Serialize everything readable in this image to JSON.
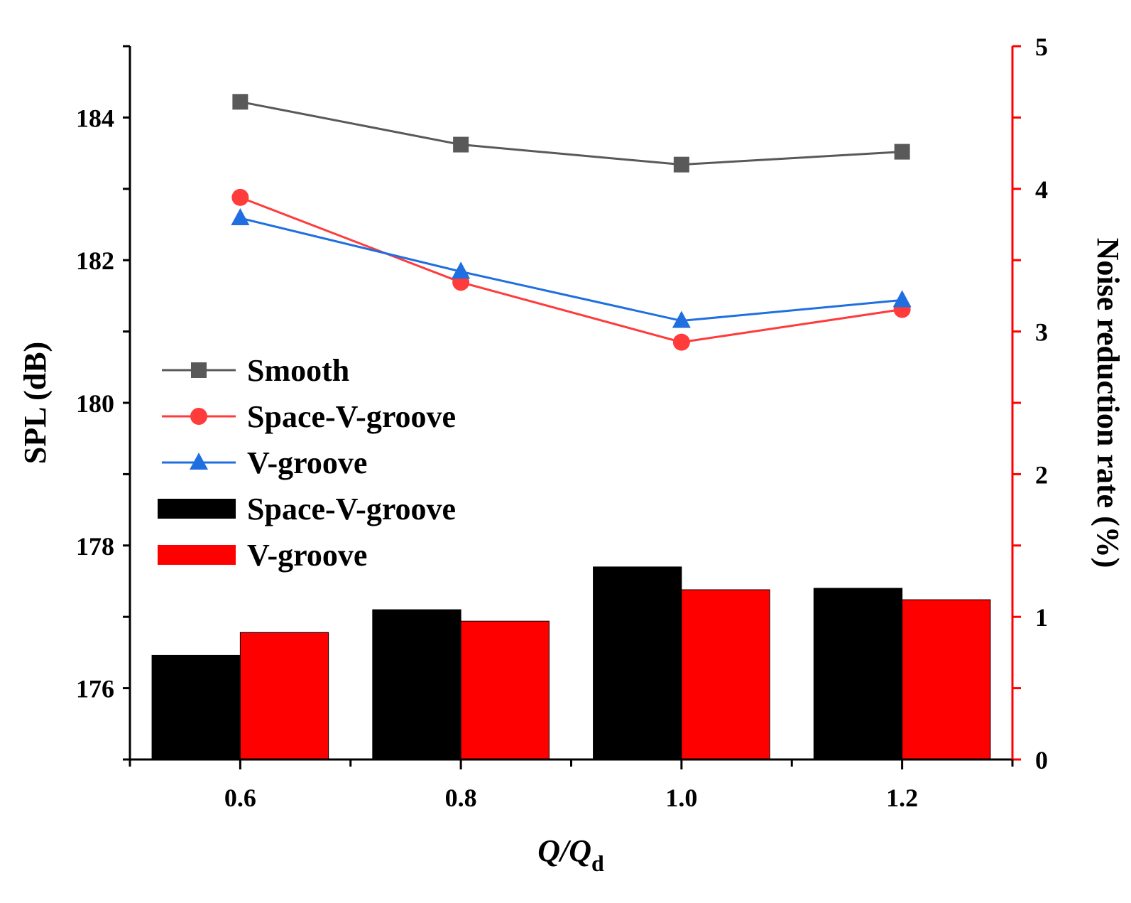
{
  "chart_data": {
    "type": "bar",
    "x_axis": {
      "label_main": "Q/Q",
      "label_sub": "d",
      "categories": [
        "0.6",
        "0.8",
        "1.0",
        "1.2"
      ]
    },
    "left_axis": {
      "label": "SPL (dB)",
      "range": [
        175,
        185
      ],
      "ticks": [
        "176",
        "178",
        "180",
        "182",
        "184"
      ]
    },
    "right_axis": {
      "label": "Noise reduction rate (%)",
      "range": [
        0,
        5
      ],
      "ticks": [
        "0",
        "1",
        "2",
        "3",
        "4",
        "5"
      ],
      "color": "#ff0000"
    },
    "line_series": [
      {
        "name": "Smooth",
        "marker": "square",
        "color": "#595959",
        "values": [
          184.22,
          183.62,
          183.34,
          183.52
        ]
      },
      {
        "name": "Space-V-groove",
        "marker": "circle",
        "color": "#ff3b3b",
        "values": [
          182.88,
          181.69,
          180.85,
          181.31
        ]
      },
      {
        "name": "V-groove",
        "marker": "triangle",
        "color": "#1f6fe0",
        "values": [
          182.59,
          181.84,
          181.15,
          181.44
        ]
      }
    ],
    "bar_series": [
      {
        "name": "Space-V-groove",
        "color": "#000000",
        "values": [
          0.73,
          1.05,
          1.35,
          1.2
        ]
      },
      {
        "name": "V-groove",
        "color": "#ff0000",
        "values": [
          0.89,
          0.97,
          1.19,
          1.12
        ]
      }
    ],
    "legend_position": "center-left"
  }
}
